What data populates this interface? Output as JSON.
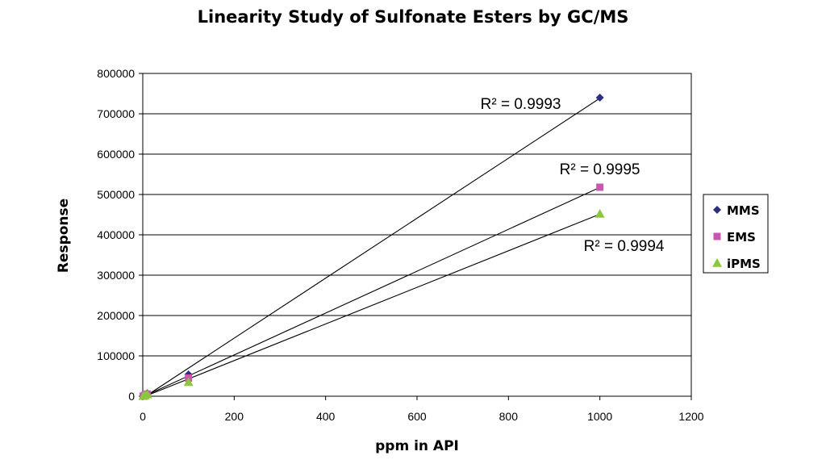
{
  "chart_data": {
    "type": "scatter",
    "title": "Linearity Study of Sulfonate Esters by GC/MS",
    "xlabel": "ppm in API",
    "ylabel": "Response",
    "xlim": [
      0,
      1200
    ],
    "ylim": [
      0,
      800000
    ],
    "x_ticks": [
      "0",
      "200",
      "400",
      "600",
      "800",
      "1000",
      "1200"
    ],
    "y_ticks": [
      "0",
      "100000",
      "200000",
      "300000",
      "400000",
      "500000",
      "600000",
      "700000",
      "800000"
    ],
    "grid": "horizontal",
    "legend_position": "right",
    "series": [
      {
        "name": "MMS",
        "color": "#2B2F7E",
        "marker": "diamond",
        "x": [
          1,
          5,
          10,
          100,
          1000
        ],
        "y": [
          800,
          3700,
          7400,
          54000,
          740000
        ],
        "r2_label": "R² = 0.9993"
      },
      {
        "name": "EMS",
        "color": "#C758B0",
        "marker": "square",
        "x": [
          1,
          5,
          10,
          100,
          1000
        ],
        "y": [
          500,
          2600,
          5200,
          45000,
          518000
        ],
        "r2_label": "R² = 0.9995"
      },
      {
        "name": "iPMS",
        "color": "#8DC63F",
        "marker": "triangle",
        "x": [
          1,
          5,
          10,
          100,
          1000
        ],
        "y": [
          450,
          2200,
          4500,
          35000,
          452000
        ],
        "r2_label": "R² = 0.9994"
      }
    ]
  }
}
